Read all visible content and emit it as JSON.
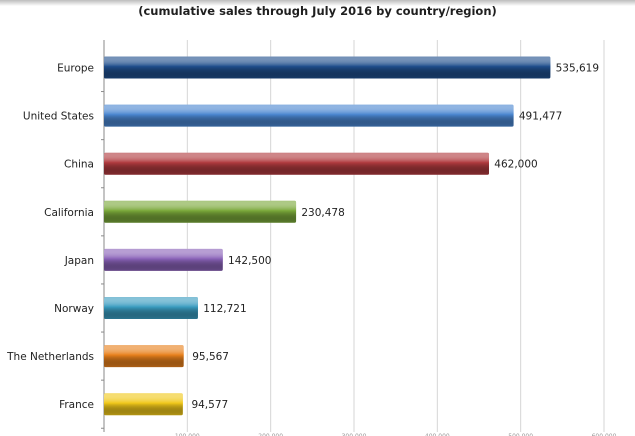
{
  "chart_data": {
    "type": "bar",
    "orientation": "horizontal",
    "subtitle": "(cumulative sales through July 2016 by country/region)",
    "categories": [
      "Europe",
      "United States",
      "China",
      "California",
      "Japan",
      "Norway",
      "The Netherlands",
      "France"
    ],
    "values": [
      535619,
      491477,
      462000,
      230478,
      142500,
      112721,
      95567,
      94577
    ],
    "value_labels": [
      "535,619",
      "491,477",
      "462,000",
      "230,478",
      "142,500",
      "112,721",
      "95,567",
      "94,577"
    ],
    "xlim": [
      0,
      600000
    ],
    "xticks": [
      100000,
      200000,
      300000,
      400000,
      500000,
      600000
    ],
    "colors": [
      "#1f4e8c",
      "#4a86d0",
      "#b03a3e",
      "#7aa83a",
      "#8a62b8",
      "#3a9cc0",
      "#e8801c",
      "#f0c81a"
    ],
    "grid": true,
    "legend": "none"
  }
}
